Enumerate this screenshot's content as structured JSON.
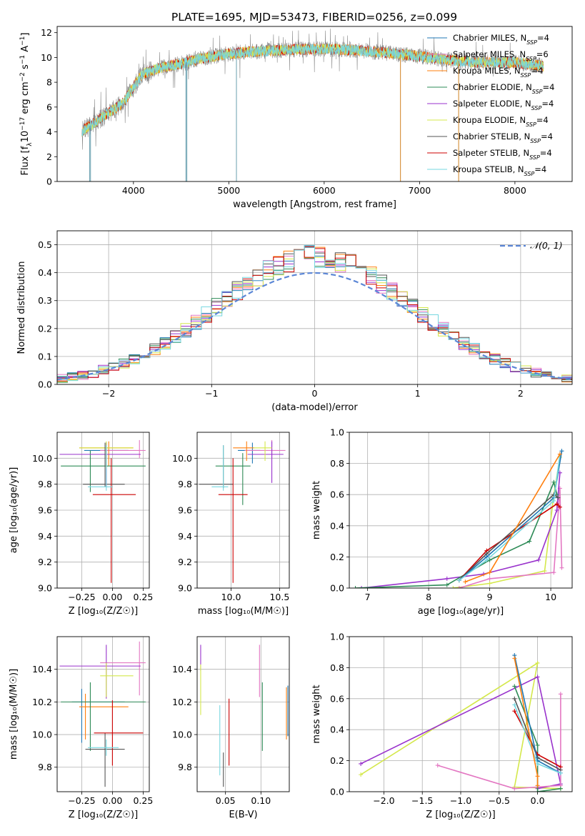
{
  "figure_title": "PLATE=1695, MJD=53473, FIBERID=0256, z=0.099",
  "colors": {
    "chabrier_miles": "#1f77b4",
    "salpeter_miles": "#e377c2",
    "kroupa_miles": "#ff7f0e",
    "chabrier_elodie": "#2e8b57",
    "salpeter_elodie": "#9932cc",
    "kroupa_elodie": "#d4e84b",
    "chabrier_stelib": "#555555",
    "salpeter_stelib": "#cc0000",
    "kroupa_stelib": "#76d7e0",
    "gaussian": "#5b86d6"
  },
  "legend_spectrum": [
    {
      "key": "chabrier_miles",
      "imf": "Chabrier",
      "lib": "MILES",
      "n": "4"
    },
    {
      "key": "salpeter_miles",
      "imf": "Salpeter",
      "lib": "MILES",
      "n": "6"
    },
    {
      "key": "kroupa_miles",
      "imf": "Kroupa",
      "lib": "MILES",
      "n": "4"
    },
    {
      "key": "chabrier_elodie",
      "imf": "Chabrier",
      "lib": "ELODIE",
      "n": "4"
    },
    {
      "key": "salpeter_elodie",
      "imf": "Salpeter",
      "lib": "ELODIE",
      "n": "4"
    },
    {
      "key": "kroupa_elodie",
      "imf": "Kroupa",
      "lib": "ELODIE",
      "n": "4"
    },
    {
      "key": "chabrier_stelib",
      "imf": "Chabrier",
      "lib": "STELIB",
      "n": "4"
    },
    {
      "key": "salpeter_stelib",
      "imf": "Salpeter",
      "lib": "STELIB",
      "n": "4"
    },
    {
      "key": "kroupa_stelib",
      "imf": "Kroupa",
      "lib": "STELIB",
      "n": "4"
    }
  ],
  "nssp_label": "N",
  "nssp_sub": "SSP",
  "chart_data": [
    {
      "type": "line",
      "panel": "spectrum",
      "xlabel": "wavelength [Angstrom, rest frame]",
      "ylabel_parts": [
        "Flux [f",
        "λ",
        "10",
        "−17",
        " erg cm",
        "−2",
        " s",
        "−1",
        " A",
        "−1",
        "]"
      ],
      "xlim": [
        3200,
        8600
      ],
      "ylim": [
        0,
        12.5
      ],
      "xticks": [
        4000,
        5000,
        6000,
        7000,
        8000
      ],
      "yticks": [
        0,
        2,
        4,
        6,
        8,
        10,
        12
      ],
      "continuum_x": [
        3450,
        3700,
        3900,
        4000,
        4100,
        4300,
        4500,
        4700,
        5000,
        5300,
        5600,
        6000,
        6300,
        6600,
        7000,
        7300,
        7600,
        8000,
        8300
      ],
      "continuum_y": [
        4.0,
        5.3,
        6.4,
        7.6,
        8.7,
        9.2,
        9.5,
        9.9,
        10.3,
        10.5,
        10.6,
        10.7,
        10.6,
        10.4,
        10.1,
        9.8,
        9.6,
        9.6,
        9.3
      ],
      "spikes_down": [
        3540,
        3550,
        4550,
        4560,
        5080,
        6800,
        7410
      ]
    },
    {
      "type": "histogram",
      "panel": "residuals",
      "xlabel": "(data-model)/error",
      "ylabel": "Normed distribution",
      "xlim": [
        -2.5,
        2.5
      ],
      "ylim": [
        0,
        0.55
      ],
      "xticks": [
        -2,
        -1,
        0,
        1,
        2
      ],
      "yticks": [
        0.0,
        0.1,
        0.2,
        0.3,
        0.4,
        0.5
      ],
      "bin_width": 0.1,
      "legend": "𝒩(0, 1)",
      "gaussian": {
        "mean": 0,
        "sigma": 1
      }
    },
    {
      "type": "scatter",
      "panel": "age_vs_Z",
      "xlabel": "Z [log₁₀(Z/Z☉)]",
      "ylabel": "age  [log₁₀(age/yr)]",
      "xlim": [
        -0.45,
        0.3
      ],
      "ylim": [
        9.0,
        10.2
      ],
      "xticks": [
        -0.25,
        0.0,
        0.25
      ],
      "yticks": [
        9.0,
        9.2,
        9.4,
        9.6,
        9.8,
        10.0
      ],
      "points": [
        {
          "key": "chabrier_miles",
          "x": -0.05,
          "xerr": [
            0.18,
            0.18
          ],
          "y": 10.06,
          "yerr": [
            0.12,
            0.06
          ]
        },
        {
          "key": "salpeter_miles",
          "x": 0.22,
          "xerr": [
            0.32,
            0.05
          ],
          "y": 10.06,
          "yerr": [
            0.06,
            0.08
          ]
        },
        {
          "key": "kroupa_miles",
          "x": -0.03,
          "xerr": [
            0.24,
            0.2
          ],
          "y": 10.08,
          "yerr": [
            0.14,
            0.05
          ]
        },
        {
          "key": "chabrier_elodie",
          "x": -0.18,
          "xerr": [
            0.24,
            0.45
          ],
          "y": 9.94,
          "yerr": [
            0.2,
            0.12
          ]
        },
        {
          "key": "salpeter_elodie",
          "x": -0.05,
          "xerr": [
            0.38,
            0.28
          ],
          "y": 10.03,
          "yerr": [
            0.25,
            0.09
          ]
        },
        {
          "key": "kroupa_elodie",
          "x": -0.05,
          "xerr": [
            0.22,
            0.22
          ],
          "y": 10.08,
          "yerr": [
            0.16,
            0.05
          ]
        },
        {
          "key": "chabrier_stelib",
          "x": -0.06,
          "xerr": [
            0.18,
            0.16
          ],
          "y": 9.8,
          "yerr": [
            0.02,
            0.32
          ]
        },
        {
          "key": "salpeter_stelib",
          "x": -0.01,
          "xerr": [
            0.15,
            0.2
          ],
          "y": 9.72,
          "yerr": [
            0.68,
            0.28
          ]
        },
        {
          "key": "kroupa_stelib",
          "x": -0.05,
          "xerr": [
            0.15,
            0.05
          ],
          "y": 9.78,
          "yerr": [
            0.03,
            0.32
          ]
        }
      ]
    },
    {
      "type": "scatter",
      "panel": "age_vs_mass",
      "xlabel": "mass [log₁₀(M/M☉)]",
      "ylabel": "",
      "xlim": [
        9.65,
        10.6
      ],
      "ylim": [
        9.0,
        10.2
      ],
      "xticks": [
        10.0,
        10.5
      ],
      "yticks": [
        9.0,
        9.2,
        9.4,
        9.6,
        9.8,
        10.0
      ],
      "points": [
        {
          "key": "chabrier_miles",
          "x": 10.22,
          "xerr": [
            0.15,
            0.08
          ],
          "y": 10.06,
          "yerr": [
            0.1,
            0.06
          ]
        },
        {
          "key": "salpeter_miles",
          "x": 10.42,
          "xerr": [
            0.28,
            0.14
          ],
          "y": 10.06,
          "yerr": [
            0.06,
            0.08
          ]
        },
        {
          "key": "kroupa_miles",
          "x": 10.16,
          "xerr": [
            0.14,
            0.08
          ],
          "y": 10.08,
          "yerr": [
            0.1,
            0.05
          ]
        },
        {
          "key": "chabrier_elodie",
          "x": 10.12,
          "xerr": [
            0.28,
            0.08
          ],
          "y": 9.94,
          "yerr": [
            0.3,
            0.1
          ]
        },
        {
          "key": "salpeter_elodie",
          "x": 10.42,
          "xerr": [
            0.25,
            0.12
          ],
          "y": 10.03,
          "yerr": [
            0.22,
            0.1
          ]
        },
        {
          "key": "kroupa_elodie",
          "x": 10.35,
          "xerr": [
            0.12,
            0.07
          ],
          "y": 10.08,
          "yerr": [
            0.1,
            0.05
          ]
        },
        {
          "key": "chabrier_stelib",
          "x": 9.92,
          "xerr": [
            0.25,
            0.1
          ],
          "y": 9.8,
          "yerr": [
            0.03,
            0.3
          ]
        },
        {
          "key": "salpeter_stelib",
          "x": 10.02,
          "xerr": [
            0.15,
            0.15
          ],
          "y": 9.72,
          "yerr": [
            0.68,
            0.28
          ]
        },
        {
          "key": "kroupa_stelib",
          "x": 9.92,
          "xerr": [
            0.12,
            0.05
          ],
          "y": 9.78,
          "yerr": [
            0.03,
            0.32
          ]
        }
      ]
    },
    {
      "type": "line",
      "panel": "massweight_vs_age",
      "xlabel": "age  [log₁₀(age/yr)]",
      "ylabel": "mass weight",
      "xlim": [
        6.7,
        10.35
      ],
      "ylim": [
        0,
        1.0
      ],
      "xticks": [
        7,
        8,
        9,
        10
      ],
      "yticks": [
        0.0,
        0.2,
        0.4,
        0.6,
        0.8,
        1.0
      ],
      "series": [
        {
          "key": "kroupa_elodie",
          "x": [
            8.4,
            9.0,
            9.9,
            10.05,
            10.15
          ],
          "y": [
            0.0,
            0.03,
            0.11,
            0.6,
            0.84
          ]
        },
        {
          "key": "salpeter_miles",
          "x": [
            8.5,
            9.0,
            10.05,
            10.15,
            10.18
          ],
          "y": [
            0.0,
            0.06,
            0.1,
            0.64,
            0.13
          ]
        },
        {
          "key": "salpeter_elodie",
          "x": [
            6.9,
            8.3,
            8.9,
            9.8,
            10.1,
            10.15
          ],
          "y": [
            0.0,
            0.06,
            0.09,
            0.18,
            0.5,
            0.74
          ]
        },
        {
          "key": "chabrier_elodie",
          "x": [
            6.8,
            8.3,
            9.0,
            9.65,
            10.05,
            10.1
          ],
          "y": [
            0.0,
            0.02,
            0.18,
            0.3,
            0.68,
            0.6
          ]
        },
        {
          "key": "salpeter_stelib",
          "x": [
            8.5,
            8.95,
            10.1,
            10.15
          ],
          "y": [
            0.05,
            0.24,
            0.54,
            0.52
          ]
        },
        {
          "key": "chabrier_stelib",
          "x": [
            8.5,
            8.95,
            10.05,
            10.12
          ],
          "y": [
            0.05,
            0.22,
            0.6,
            0.58
          ]
        },
        {
          "key": "chabrier_miles",
          "x": [
            8.5,
            8.95,
            10.05,
            10.18
          ],
          "y": [
            0.05,
            0.2,
            0.58,
            0.88
          ]
        },
        {
          "key": "kroupa_stelib",
          "x": [
            8.5,
            8.95,
            10.05,
            10.15
          ],
          "y": [
            0.05,
            0.18,
            0.56,
            0.86
          ]
        },
        {
          "key": "kroupa_miles",
          "x": [
            8.6,
            9.0,
            10.15
          ],
          "y": [
            0.04,
            0.1,
            0.86
          ]
        }
      ]
    },
    {
      "type": "scatter",
      "panel": "mass_vs_Z",
      "xlabel": "Z [log₁₀(Z/Z☉)]",
      "ylabel": "mass [log₁₀(M/M☉)]",
      "xlim": [
        -0.45,
        0.3
      ],
      "ylim": [
        9.65,
        10.6
      ],
      "xticks": [
        -0.25,
        0.0,
        0.25
      ],
      "yticks": [
        9.8,
        10.0,
        10.2,
        10.4
      ],
      "points": [
        {
          "key": "chabrier_miles",
          "x": -0.25,
          "xerr": [
            0.08,
            0.35
          ],
          "y": 10.2,
          "yerr": [
            0.25,
            0.08
          ]
        },
        {
          "key": "salpeter_miles",
          "x": 0.22,
          "xerr": [
            0.32,
            0.05
          ],
          "y": 10.44,
          "yerr": [
            0.2,
            0.13
          ]
        },
        {
          "key": "kroupa_miles",
          "x": -0.22,
          "xerr": [
            0.05,
            0.35
          ],
          "y": 10.17,
          "yerr": [
            0.2,
            0.08
          ]
        },
        {
          "key": "chabrier_elodie",
          "x": -0.18,
          "xerr": [
            0.24,
            0.45
          ],
          "y": 10.2,
          "yerr": [
            0.3,
            0.12
          ]
        },
        {
          "key": "salpeter_elodie",
          "x": -0.05,
          "xerr": [
            0.38,
            0.28
          ],
          "y": 10.42,
          "yerr": [
            0.2,
            0.13
          ]
        },
        {
          "key": "kroupa_elodie",
          "x": -0.05,
          "xerr": [
            0.05,
            0.22
          ],
          "y": 10.36,
          "yerr": [
            0.13,
            0.08
          ]
        },
        {
          "key": "chabrier_stelib",
          "x": -0.06,
          "xerr": [
            0.16,
            0.16
          ],
          "y": 9.91,
          "yerr": [
            0.23,
            0.1
          ]
        },
        {
          "key": "salpeter_stelib",
          "x": 0.0,
          "xerr": [
            0.15,
            0.25
          ],
          "y": 10.01,
          "yerr": [
            0.2,
            0.2
          ]
        },
        {
          "key": "kroupa_stelib",
          "x": -0.05,
          "xerr": [
            0.15,
            0.1
          ],
          "y": 9.92,
          "yerr": [
            0.05,
            0.05
          ]
        }
      ]
    },
    {
      "type": "scatter",
      "panel": "mass_vs_ebv",
      "xlabel": "E(B-V)",
      "ylabel": "",
      "xlim": [
        0.01,
        0.14
      ],
      "ylim": [
        9.65,
        10.6
      ],
      "xticks": [
        0.05,
        0.1
      ],
      "yticks": [
        9.8,
        10.0,
        10.2,
        10.4
      ],
      "points": [
        {
          "key": "chabrier_miles",
          "x": 0.138,
          "y": 10.14,
          "yerr": [
            0.15,
            0.16
          ]
        },
        {
          "key": "salpeter_miles",
          "x": 0.098,
          "y": 10.38,
          "yerr": [
            0.15,
            0.17
          ]
        },
        {
          "key": "kroupa_miles",
          "x": 0.136,
          "y": 10.12,
          "yerr": [
            0.15,
            0.17
          ]
        },
        {
          "key": "chabrier_elodie",
          "x": 0.102,
          "y": 10.11,
          "yerr": [
            0.21,
            0.21
          ]
        },
        {
          "key": "salpeter_elodie",
          "x": 0.015,
          "y": 10.45,
          "yerr": [
            0.06,
            0.1
          ]
        },
        {
          "key": "kroupa_elodie",
          "x": 0.015,
          "y": 10.27,
          "yerr": [
            0.15,
            0.16
          ]
        },
        {
          "key": "chabrier_stelib",
          "x": 0.047,
          "y": 9.78,
          "yerr": [
            0.1,
            0.11
          ]
        },
        {
          "key": "salpeter_stelib",
          "x": 0.055,
          "y": 10.01,
          "yerr": [
            0.2,
            0.21
          ]
        },
        {
          "key": "kroupa_stelib",
          "x": 0.042,
          "y": 9.95,
          "yerr": [
            0.2,
            0.23
          ]
        }
      ]
    },
    {
      "type": "line",
      "panel": "massweight_vs_Z",
      "xlabel": "Z [log₁₀(Z/Z☉)]",
      "ylabel": "mass weight",
      "xlim": [
        -2.45,
        0.45
      ],
      "ylim": [
        0,
        1.0
      ],
      "xticks": [
        -2.0,
        -1.5,
        -1.0,
        -0.5,
        0.0
      ],
      "yticks": [
        0.0,
        0.2,
        0.4,
        0.6,
        0.8,
        1.0
      ],
      "series": [
        {
          "key": "kroupa_elodie",
          "x": [
            -2.3,
            0.0,
            -0.3,
            0.3
          ],
          "y": [
            0.11,
            0.83,
            0.03,
            0.02
          ]
        },
        {
          "key": "salpeter_elodie",
          "x": [
            -2.3,
            0.0,
            0.3,
            0.0
          ],
          "y": [
            0.18,
            0.74,
            0.05,
            0.02
          ]
        },
        {
          "key": "salpeter_miles",
          "x": [
            -1.3,
            -0.3,
            0.3,
            0.3
          ],
          "y": [
            0.17,
            0.02,
            0.04,
            0.63
          ]
        },
        {
          "key": "chabrier_elodie",
          "x": [
            -0.3,
            0.0,
            0.0,
            0.3
          ],
          "y": [
            0.68,
            0.3,
            0.0,
            0.02
          ]
        },
        {
          "key": "salpeter_stelib",
          "x": [
            -0.3,
            0.0,
            0.3
          ],
          "y": [
            0.52,
            0.24,
            0.16
          ]
        },
        {
          "key": "chabrier_stelib",
          "x": [
            -0.3,
            0.0,
            0.3
          ],
          "y": [
            0.6,
            0.22,
            0.14
          ]
        },
        {
          "key": "chabrier_miles",
          "x": [
            -0.3,
            0.0,
            0.3
          ],
          "y": [
            0.88,
            0.2,
            0.12
          ]
        },
        {
          "key": "kroupa_stelib",
          "x": [
            -0.3,
            0.0,
            0.3
          ],
          "y": [
            0.56,
            0.18,
            0.12
          ]
        },
        {
          "key": "kroupa_miles",
          "x": [
            -0.3,
            0.0,
            0.0
          ],
          "y": [
            0.86,
            0.1,
            0.04
          ]
        }
      ]
    }
  ]
}
